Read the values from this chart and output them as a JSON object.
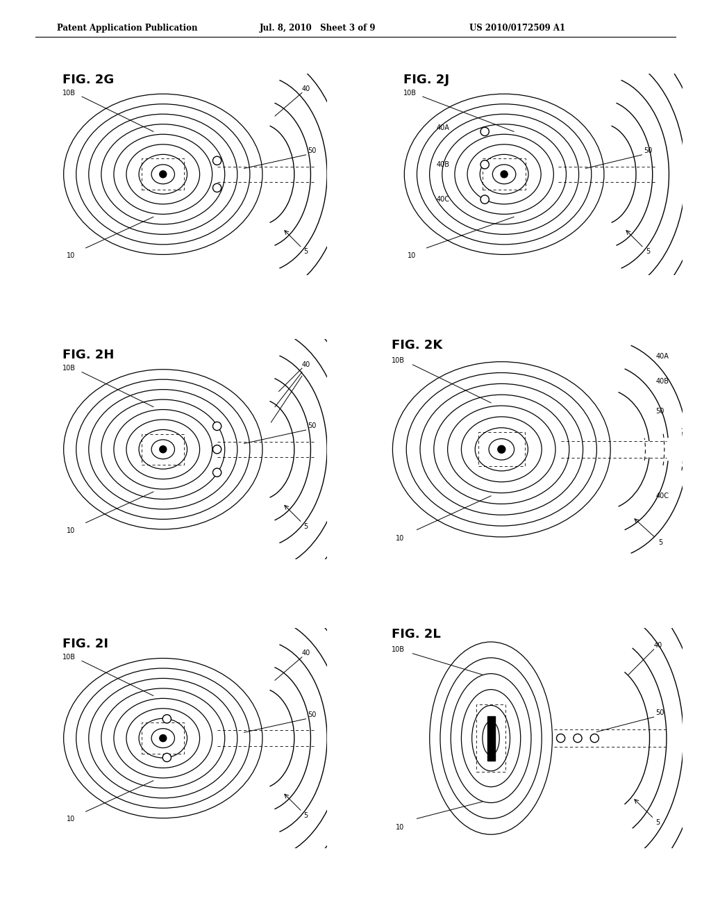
{
  "header_left": "Patent Application Publication",
  "header_mid": "Jul. 8, 2010   Sheet 3 of 9",
  "header_right": "US 2010/0172509 A1",
  "bg_color": "#ffffff"
}
